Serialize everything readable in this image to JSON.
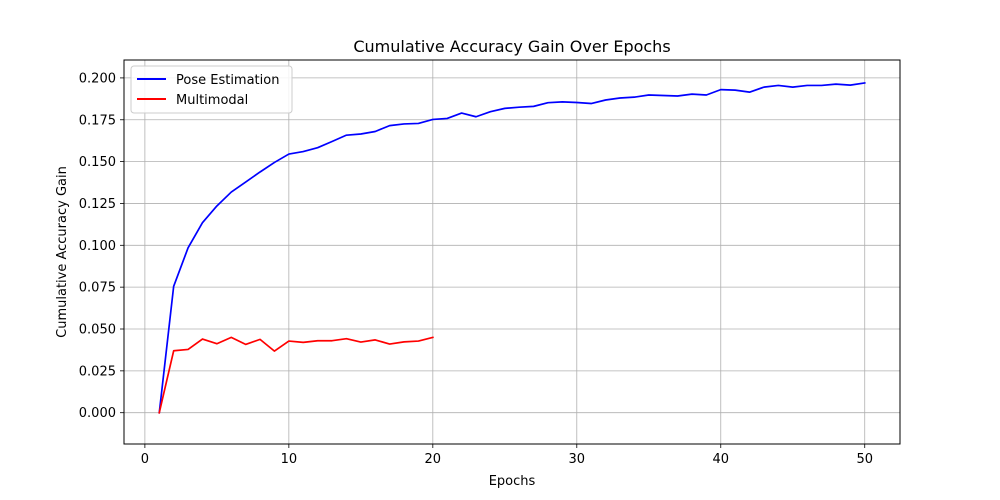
{
  "chart_data": {
    "type": "line",
    "title": "Cumulative Accuracy Gain Over Epochs",
    "xlabel": "Epochs",
    "ylabel": "Cumulative Accuracy Gain",
    "xlim": [
      -1.45,
      52.45
    ],
    "ylim": [
      -0.0187,
      0.2107
    ],
    "xticks": [
      0,
      10,
      20,
      30,
      40,
      50
    ],
    "xtick_labels": [
      "0",
      "10",
      "20",
      "30",
      "40",
      "50"
    ],
    "yticks": [
      0.0,
      0.025,
      0.05,
      0.075,
      0.1,
      0.125,
      0.15,
      0.175,
      0.2
    ],
    "ytick_labels": [
      "0.000",
      "0.025",
      "0.050",
      "0.075",
      "0.100",
      "0.125",
      "0.150",
      "0.175",
      "0.200"
    ],
    "grid": true,
    "legend_position": "top-left",
    "series": [
      {
        "name": "Pose Estimation",
        "color": "#0000ff",
        "x": [
          1,
          2,
          3,
          4,
          5,
          6,
          7,
          8,
          9,
          10,
          11,
          12,
          13,
          14,
          15,
          16,
          17,
          18,
          19,
          20,
          21,
          22,
          23,
          24,
          25,
          26,
          27,
          28,
          29,
          30,
          31,
          32,
          33,
          34,
          35,
          36,
          37,
          38,
          39,
          40,
          41,
          42,
          43,
          44,
          45,
          46,
          47,
          48,
          49,
          50
        ],
        "y": [
          0.0,
          0.0755,
          0.0985,
          0.1135,
          0.1235,
          0.1318,
          0.1378,
          0.1438,
          0.1495,
          0.1545,
          0.156,
          0.1583,
          0.162,
          0.1658,
          0.1665,
          0.168,
          0.1715,
          0.1725,
          0.1728,
          0.1752,
          0.1758,
          0.179,
          0.1768,
          0.1798,
          0.1818,
          0.1825,
          0.183,
          0.1852,
          0.1857,
          0.1853,
          0.1847,
          0.1868,
          0.188,
          0.1885,
          0.1898,
          0.1895,
          0.1892,
          0.1903,
          0.1898,
          0.193,
          0.1927,
          0.1915,
          0.1945,
          0.1955,
          0.1945,
          0.1955,
          0.1955,
          0.1963,
          0.1957,
          0.197
        ]
      },
      {
        "name": "Multimodal",
        "color": "#ff0000",
        "x": [
          1,
          2,
          3,
          4,
          5,
          6,
          7,
          8,
          9,
          10,
          11,
          12,
          13,
          14,
          15,
          16,
          17,
          18,
          19,
          20
        ],
        "y": [
          0.0,
          0.037,
          0.0378,
          0.044,
          0.0412,
          0.045,
          0.0408,
          0.0438,
          0.0368,
          0.0428,
          0.042,
          0.043,
          0.043,
          0.0442,
          0.0422,
          0.0435,
          0.041,
          0.0423,
          0.0428,
          0.045
        ]
      }
    ]
  }
}
